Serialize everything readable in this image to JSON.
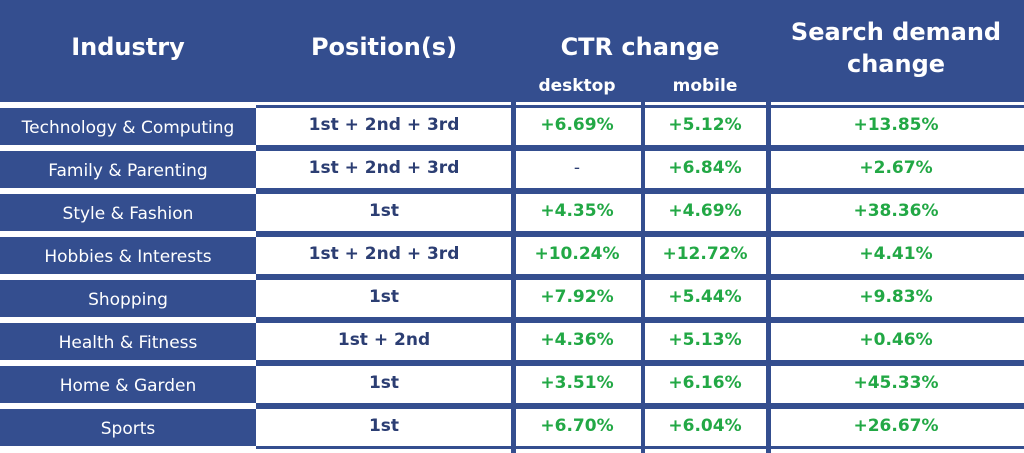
{
  "chart_data": {
    "type": "table",
    "columns": {
      "industry": "Industry",
      "positions": "Position(s)",
      "ctr_change": "CTR change",
      "desktop": "desktop",
      "mobile": "mobile",
      "search_demand_line1": "Search demand",
      "search_demand_line2": "change"
    },
    "rows": [
      {
        "industry": "Technology & Computing",
        "positions": "1st + 2nd + 3rd",
        "desktop": "+6.69%",
        "mobile": "+5.12%",
        "search_demand": "+13.85%"
      },
      {
        "industry": "Family & Parenting",
        "positions": "1st + 2nd + 3rd",
        "desktop": "-",
        "mobile": "+6.84%",
        "search_demand": "+2.67%"
      },
      {
        "industry": "Style & Fashion",
        "positions": "1st",
        "desktop": "+4.35%",
        "mobile": "+4.69%",
        "search_demand": "+38.36%"
      },
      {
        "industry": "Hobbies & Interests",
        "positions": "1st + 2nd + 3rd",
        "desktop": "+10.24%",
        "mobile": "+12.72%",
        "search_demand": "+4.41%"
      },
      {
        "industry": "Shopping",
        "positions": "1st",
        "desktop": "+7.92%",
        "mobile": "+5.44%",
        "search_demand": "+9.83%"
      },
      {
        "industry": "Health & Fitness",
        "positions": "1st + 2nd",
        "desktop": "+4.36%",
        "mobile": "+5.13%",
        "search_demand": "+0.46%"
      },
      {
        "industry": "Home & Garden",
        "positions": "1st",
        "desktop": "+3.51%",
        "mobile": "+6.16%",
        "search_demand": "+45.33%"
      },
      {
        "industry": "Sports",
        "positions": "1st",
        "desktop": "+6.70%",
        "mobile": "+6.04%",
        "search_demand": "+26.67%"
      }
    ]
  },
  "colors": {
    "header_bg": "#344e8f",
    "header_text": "#ffffff",
    "position_text": "#2c3e73",
    "positive_value": "#22a845"
  }
}
